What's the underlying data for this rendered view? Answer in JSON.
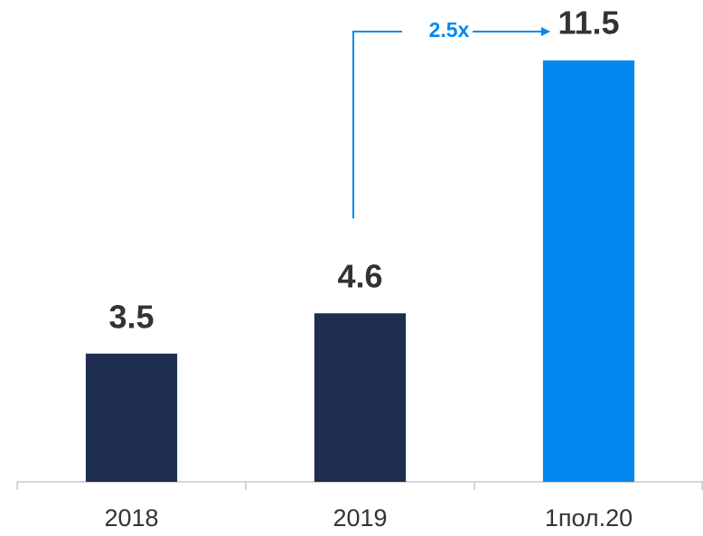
{
  "chart_data": {
    "type": "bar",
    "categories": [
      "2018",
      "2019",
      "1пол.20"
    ],
    "values": [
      3.5,
      4.6,
      11.5
    ],
    "colors": [
      "#1f2d52",
      "#1f2d52",
      "#0088f0"
    ],
    "annotation": "2.5x"
  }
}
